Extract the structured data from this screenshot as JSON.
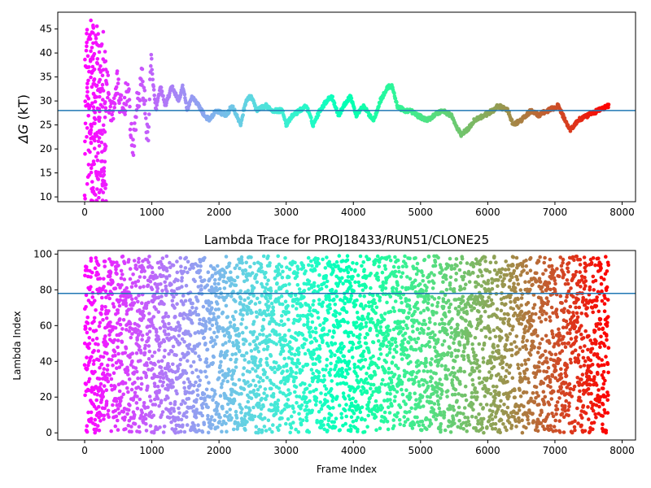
{
  "chart_data": [
    {
      "type": "scatter",
      "title": "",
      "xlabel": "",
      "ylabel": "ΔG (kT)",
      "ylabel_symbol": "ΔG",
      "ylabel_unit": " (kT)",
      "xlim": [
        -400,
        8200
      ],
      "ylim": [
        9,
        48.5
      ],
      "x_ticks": [
        0,
        1000,
        2000,
        3000,
        4000,
        5000,
        6000,
        7000,
        8000
      ],
      "y_ticks": [
        10,
        15,
        20,
        25,
        30,
        35,
        40,
        45
      ],
      "hline": 28,
      "hline_color": "#1f77b4",
      "colormap": "rainbow",
      "x_max": 7800,
      "trace_keypoints": [
        [
          0,
          10
        ],
        [
          30,
          46
        ],
        [
          80,
          20
        ],
        [
          130,
          38
        ],
        [
          180,
          12
        ],
        [
          230,
          33
        ],
        [
          280,
          10
        ],
        [
          330,
          35
        ],
        [
          400,
          26
        ],
        [
          480,
          34
        ],
        [
          560,
          27
        ],
        [
          640,
          33
        ],
        [
          720,
          19
        ],
        [
          770,
          28
        ],
        [
          860,
          35
        ],
        [
          940,
          22
        ],
        [
          990,
          38
        ],
        [
          1060,
          28
        ],
        [
          1130,
          33
        ],
        [
          1200,
          29
        ],
        [
          1300,
          33
        ],
        [
          1400,
          30
        ],
        [
          1460,
          33
        ],
        [
          1530,
          28
        ],
        [
          1600,
          31
        ],
        [
          1700,
          29
        ],
        [
          1780,
          27
        ],
        [
          1860,
          26
        ],
        [
          1960,
          28
        ],
        [
          2100,
          27
        ],
        [
          2200,
          29
        ],
        [
          2320,
          25
        ],
        [
          2400,
          30
        ],
        [
          2480,
          31
        ],
        [
          2560,
          28
        ],
        [
          2700,
          29
        ],
        [
          2800,
          28
        ],
        [
          2950,
          28
        ],
        [
          3000,
          25
        ],
        [
          3100,
          27
        ],
        [
          3300,
          29
        ],
        [
          3400,
          25
        ],
        [
          3500,
          28
        ],
        [
          3600,
          30
        ],
        [
          3680,
          31
        ],
        [
          3780,
          27
        ],
        [
          3900,
          30
        ],
        [
          3960,
          31
        ],
        [
          4040,
          27
        ],
        [
          4140,
          29
        ],
        [
          4300,
          26
        ],
        [
          4400,
          30
        ],
        [
          4520,
          33
        ],
        [
          4580,
          33
        ],
        [
          4650,
          29
        ],
        [
          4750,
          28
        ],
        [
          4850,
          28
        ],
        [
          4950,
          27
        ],
        [
          5100,
          26
        ],
        [
          5200,
          27
        ],
        [
          5320,
          28
        ],
        [
          5460,
          27
        ],
        [
          5520,
          25
        ],
        [
          5600,
          23
        ],
        [
          5700,
          24
        ],
        [
          5800,
          26
        ],
        [
          5950,
          27
        ],
        [
          6080,
          28
        ],
        [
          6150,
          29
        ],
        [
          6300,
          28
        ],
        [
          6380,
          25
        ],
        [
          6500,
          26
        ],
        [
          6650,
          28
        ],
        [
          6750,
          27
        ],
        [
          6900,
          28
        ],
        [
          7050,
          29
        ],
        [
          7150,
          26
        ],
        [
          7230,
          24
        ],
        [
          7350,
          26
        ],
        [
          7500,
          27
        ],
        [
          7640,
          28
        ],
        [
          7800,
          29
        ]
      ]
    },
    {
      "type": "scatter",
      "title": "Lambda Trace for PROJ18433/RUN51/CLONE25",
      "xlabel": "Frame Index",
      "ylabel": "Lambda Index",
      "xlim": [
        -400,
        8200
      ],
      "ylim": [
        -4,
        102
      ],
      "x_ticks": [
        0,
        1000,
        2000,
        3000,
        4000,
        5000,
        6000,
        7000,
        8000
      ],
      "y_ticks": [
        0,
        20,
        40,
        60,
        80,
        100
      ],
      "hline": 78,
      "hline_color": "#1f77b4",
      "colormap": "rainbow",
      "x_max": 7800,
      "value_range": [
        0,
        99
      ]
    }
  ]
}
